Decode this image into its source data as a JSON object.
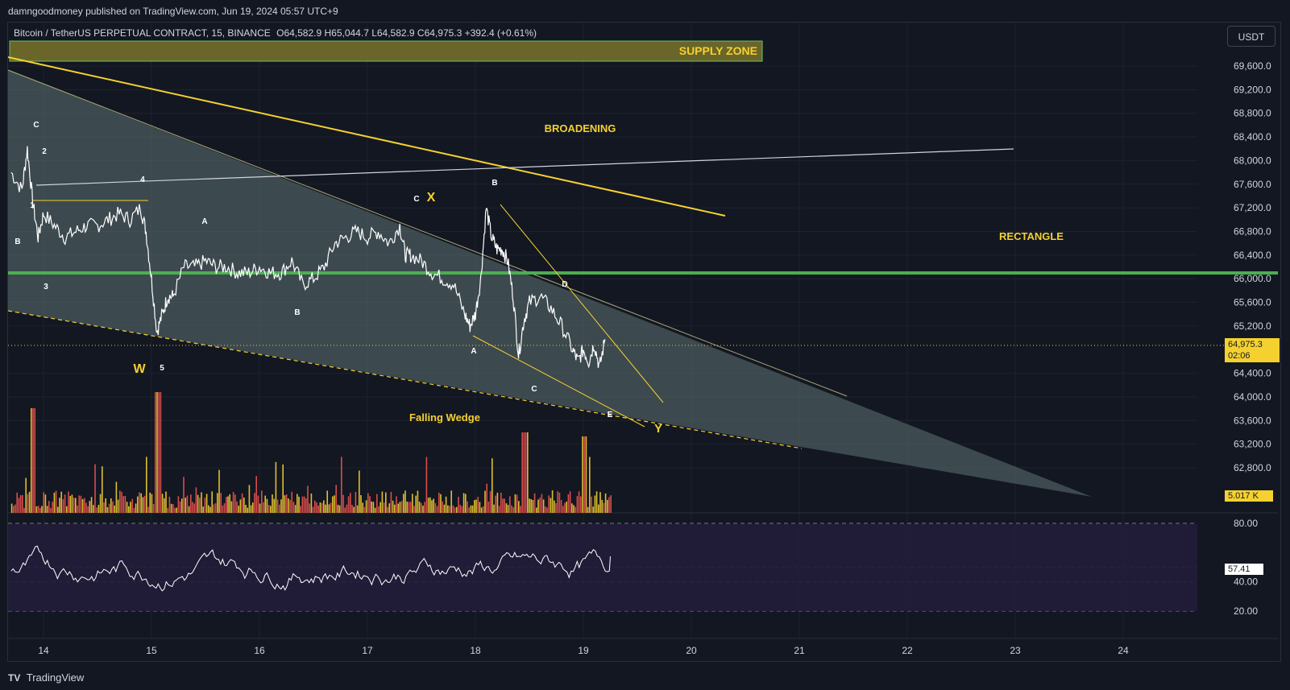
{
  "header": {
    "publisher_line": "damngoodmoney published on TradingView.com, Jun 19, 2024 05:57 UTC+9",
    "symbol_name": "Bitcoin / TetherUS PERPETUAL CONTRACT, 15, BINANCE",
    "ohlc": "O64,582.9  H65,044.7  L64,582.9  C64,975.3  +392.4 (+0.61%)",
    "currency_button": "USDT"
  },
  "footer": {
    "brand": "TradingView",
    "logo_glyph": "TV"
  },
  "colors": {
    "background": "#131722",
    "candle": "#ffffff",
    "annotation_yellow": "#f5d130",
    "support_green": "#4caf50",
    "wedge_fill": "#5d6f70",
    "volume_red": "#ef5350",
    "volume_yellow": "#f5d130"
  },
  "labels": {
    "supply_zone": "SUPPLY ZONE",
    "broadening": "BROADENING",
    "rectangle": "RECTANGLE",
    "falling_wedge": "Falling Wedge",
    "wave_w": "W",
    "wave_x": "X",
    "wave_y": "Y",
    "b_left": "B",
    "c_top": "C",
    "n1": "1",
    "n2": "2",
    "n3": "3",
    "n4": "4",
    "n5": "5",
    "a_mid": "A",
    "b_mid": "B",
    "c_x": "C",
    "b_peak": "B",
    "a_low": "A",
    "c_low": "C",
    "d_label": "D",
    "e_label": "E"
  },
  "price_tags": {
    "last_price": "64,975.3",
    "countdown": "02:06",
    "volume": "5.017 K",
    "rsi": "57.41"
  },
  "chart_data": {
    "type": "line",
    "price_axis": {
      "ticks": [
        "69,600.0",
        "69,200.0",
        "68,800.0",
        "68,400.0",
        "68,000.0",
        "67,600.0",
        "67,200.0",
        "66,800.0",
        "66,400.0",
        "66,000.0",
        "65,600.0",
        "65,200.0",
        "64,400.0",
        "64,000.0",
        "63,600.0",
        "63,200.0",
        "62,800.0"
      ],
      "range": [
        62600,
        69850
      ]
    },
    "time_axis": {
      "ticks": [
        "14",
        "15",
        "16",
        "17",
        "18",
        "19",
        "20",
        "21",
        "22",
        "23",
        "24"
      ]
    },
    "rsi_axis": {
      "ticks": [
        "80.00",
        "40.00",
        "20.00"
      ],
      "range": [
        15,
        85
      ]
    },
    "series": [
      {
        "x": [
          13.7,
          13.8,
          13.85,
          13.9,
          13.95,
          14.0,
          14.1,
          14.2,
          14.3,
          14.4,
          14.5,
          14.6,
          14.7,
          14.8,
          14.9,
          14.95,
          15.0,
          15.05,
          15.1,
          15.15,
          15.2,
          15.3,
          15.4,
          15.5,
          15.6,
          15.7,
          15.8,
          15.9,
          16.0,
          16.1,
          16.2,
          16.3,
          16.4,
          16.5,
          16.6,
          16.7,
          16.8,
          16.9,
          17.0,
          17.1,
          17.2,
          17.3,
          17.35,
          17.4,
          17.5,
          17.6,
          17.7,
          17.8,
          17.9,
          17.95,
          18.0,
          18.05,
          18.1,
          18.15,
          18.2,
          18.25,
          18.3,
          18.35,
          18.4,
          18.45,
          18.5,
          18.6,
          18.7,
          18.8,
          18.9,
          18.95,
          19.0,
          19.05,
          19.1,
          19.15,
          19.2
        ],
        "values": [
          67800,
          67500,
          68200,
          67300,
          66700,
          67100,
          66900,
          66700,
          66800,
          66900,
          66900,
          67000,
          67100,
          67000,
          67200,
          66800,
          66000,
          65100,
          65400,
          65700,
          65700,
          66200,
          66200,
          66300,
          66200,
          66200,
          66100,
          66100,
          66200,
          66100,
          66100,
          66300,
          65900,
          66000,
          66200,
          66600,
          66700,
          66800,
          66700,
          66800,
          66600,
          66900,
          66400,
          66400,
          66300,
          66100,
          66000,
          65900,
          65400,
          65200,
          65400,
          66000,
          67200,
          66700,
          66500,
          66500,
          66300,
          65700,
          64700,
          65300,
          65600,
          65700,
          65500,
          65200,
          64800,
          64600,
          64800,
          64600,
          64900,
          64500,
          64975
        ]
      }
    ],
    "annotations": [
      "SUPPLY ZONE",
      "BROADENING",
      "RECTANGLE",
      "Falling Wedge"
    ]
  }
}
